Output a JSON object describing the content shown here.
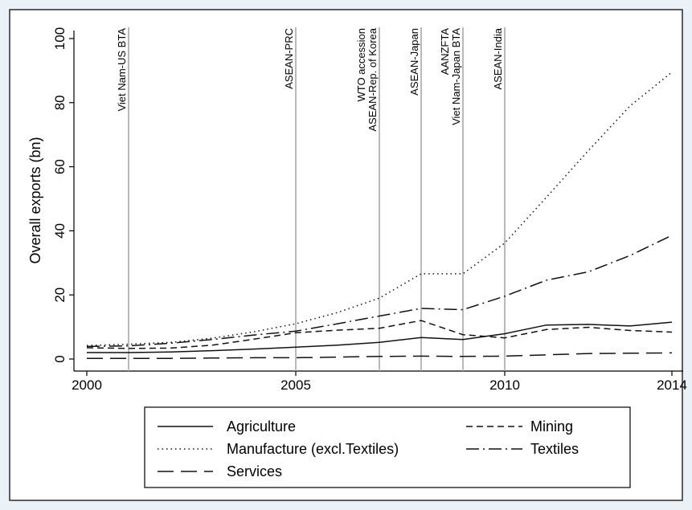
{
  "chart_data": {
    "type": "line",
    "title": "",
    "xlabel": "",
    "ylabel": "Overall exports (bn)",
    "xlim": [
      2000,
      2014
    ],
    "ylim": [
      0,
      100
    ],
    "x_ticks": [
      2000,
      2005,
      2010,
      2014
    ],
    "y_ticks": [
      0,
      20,
      40,
      60,
      80,
      100
    ],
    "grid": false,
    "legend_position": "bottom",
    "x": [
      2000,
      2001,
      2002,
      2003,
      2004,
      2005,
      2006,
      2007,
      2008,
      2009,
      2010,
      2011,
      2012,
      2013,
      2014
    ],
    "series": [
      {
        "name": "Agriculture",
        "dash": "solid",
        "values": [
          2.0,
          2.0,
          2.2,
          2.6,
          3.1,
          3.7,
          4.3,
          5.2,
          6.7,
          6.1,
          7.9,
          10.6,
          10.8,
          10.3,
          11.5
        ]
      },
      {
        "name": "Mining",
        "dash": "short-dash",
        "values": [
          3.5,
          3.3,
          3.4,
          4.3,
          6.2,
          8.2,
          9.0,
          9.6,
          12.0,
          7.6,
          6.6,
          9.2,
          9.9,
          8.9,
          8.4
        ]
      },
      {
        "name": "Manufacture (excl.Textiles)",
        "dash": "dot",
        "values": [
          4.2,
          4.6,
          5.2,
          6.5,
          8.5,
          11.0,
          14.5,
          19.0,
          26.6,
          26.6,
          36.2,
          50.5,
          65.0,
          79.0,
          89.5
        ]
      },
      {
        "name": "Textiles",
        "dash": "dash-dot",
        "values": [
          3.9,
          4.1,
          4.9,
          6.1,
          7.5,
          8.7,
          11.0,
          13.4,
          15.8,
          15.4,
          19.6,
          24.6,
          27.2,
          32.3,
          38.6
        ]
      },
      {
        "name": "Services",
        "dash": "long-dash",
        "values": [
          0.2,
          0.2,
          0.2,
          0.3,
          0.4,
          0.4,
          0.6,
          0.8,
          0.9,
          0.8,
          0.9,
          1.3,
          1.7,
          1.8,
          1.9
        ]
      }
    ],
    "events": [
      {
        "x": 2001,
        "labels": [
          "Viet Nam-US BTA"
        ]
      },
      {
        "x": 2005,
        "labels": [
          "ASEAN-PRC"
        ]
      },
      {
        "x": 2007,
        "labels": [
          "WTO accession",
          "ASEAN-Rep. of Korea"
        ]
      },
      {
        "x": 2008,
        "labels": [
          "ASEAN-Japan"
        ]
      },
      {
        "x": 2009,
        "labels": [
          "AANZFTA",
          "Viet Nam-Japan BTA"
        ]
      },
      {
        "x": 2010,
        "labels": [
          "ASEAN-India"
        ]
      }
    ]
  }
}
